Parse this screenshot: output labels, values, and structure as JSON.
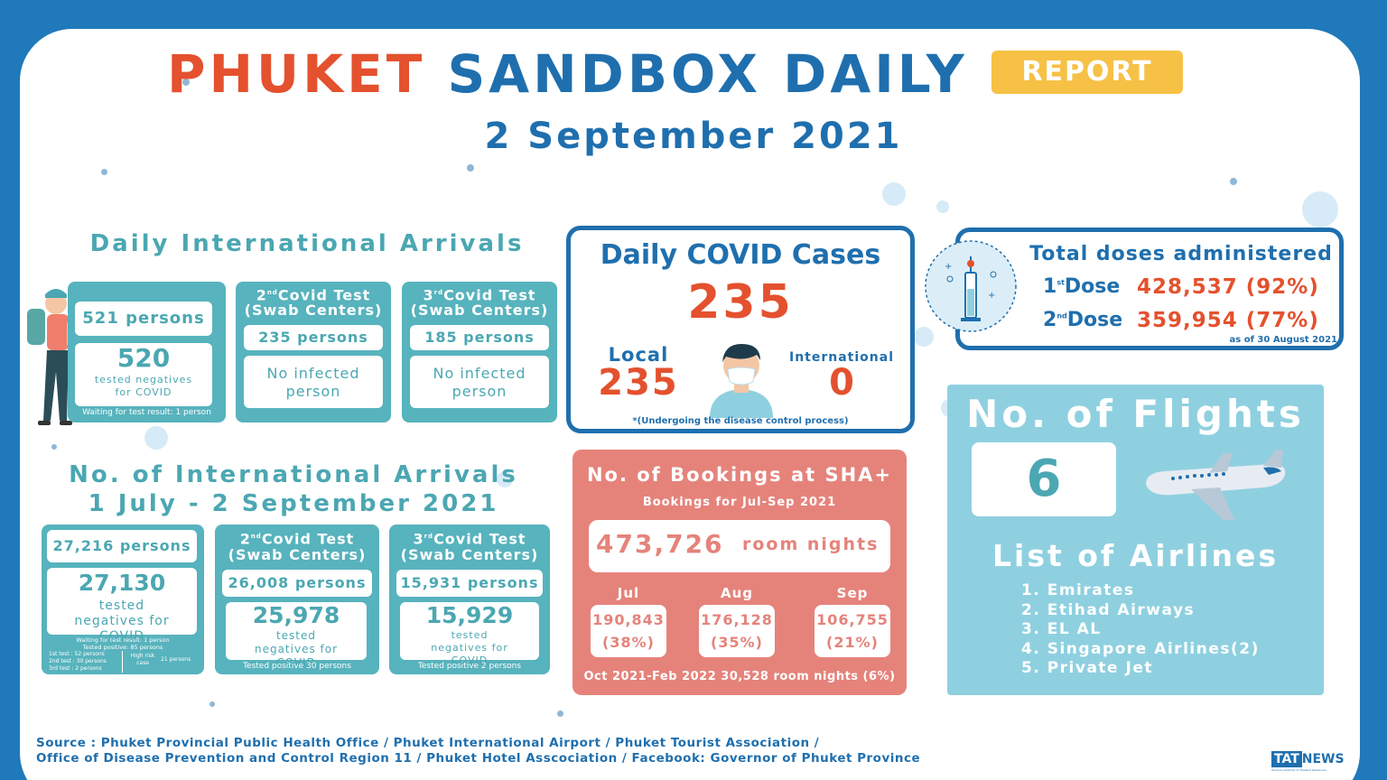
{
  "header": {
    "title_part1": "PHUKET",
    "title_part2": "SANDBOX DAILY",
    "badge": "REPORT",
    "date": "2 September 2021"
  },
  "daily_arrivals": {
    "heading": "Daily International Arrivals",
    "persons": "521 persons",
    "negatives_count": "520",
    "negatives_label": "tested negatives for COVID",
    "waiting": "Waiting for test result: 1 person",
    "test2_title_ord": "nd",
    "test2_title_num": "2",
    "test2_title": "Covid Test",
    "test2_sub": "(Swab Centers)",
    "test2_persons": "235 persons",
    "test2_result": "No infected person",
    "test3_title_ord": "rd",
    "test3_title_num": "3",
    "test3_title": "Covid Test",
    "test3_sub": "(Swab Centers)",
    "test3_persons": "185 persons",
    "test3_result": "No infected person"
  },
  "total_arrivals": {
    "heading_line1": "No. of International Arrivals",
    "heading_line2": "1 July - 2 September 2021",
    "persons": "27,216 persons",
    "negatives_count": "27,130",
    "negatives_label": "tested negatives for COVID",
    "note1": "Waiting for test result: 1 person",
    "note2": "Tested positive: 85 persons",
    "note3a": "1st test :  52 persons",
    "note3b": "2nd test :  30 persons",
    "note3c": "3rd test :  2 persons",
    "note_high_risk": "High risk case",
    "note_high_risk_val": "21 persons",
    "test2_num": "2",
    "test2_ord": "nd",
    "test2_title": "Covid Test",
    "test2_sub": "(Swab Centers)",
    "test2_persons": "26,008 persons",
    "test2_neg_count": "25,978",
    "test2_neg_label": "tested negatives for COVID",
    "test2_pos": "Tested positive 30 persons",
    "test3_num": "3",
    "test3_ord": "rd",
    "test3_title": "Covid Test",
    "test3_sub": "(Swab Centers)",
    "test3_persons": "15,931 persons",
    "test3_neg_count": "15,929",
    "test3_neg_label": "tested negatives for COVID",
    "test3_pos": "Tested positive 2 persons"
  },
  "covid_cases": {
    "heading": "Daily COVID Cases",
    "total": "235",
    "local_label": "Local",
    "local_value": "235",
    "intl_label": "International",
    "intl_value": "0",
    "note": "*(Undergoing the disease control process)"
  },
  "doses": {
    "heading": "Total doses administered",
    "dose1_num": "1",
    "dose1_ord": "st",
    "dose1_label": "Dose",
    "dose1_value": "428,537 (92%)",
    "dose2_num": "2",
    "dose2_ord": "nd",
    "dose2_label": "Dose",
    "dose2_value": "359,954 (77%)",
    "as_of": "as of 30 August 2021"
  },
  "bookings": {
    "heading": "No. of Bookings at SHA+",
    "sub": "Bookings for Jul-Sep 2021",
    "total": "473,726",
    "unit": "room nights",
    "months": [
      {
        "label": "Jul",
        "value": "190,843",
        "pct": "(38%)"
      },
      {
        "label": "Aug",
        "value": "176,128",
        "pct": "(35%)"
      },
      {
        "label": "Sep",
        "value": "106,755",
        "pct": "(21%)"
      }
    ],
    "footer": "Oct 2021-Feb 2022 30,528 room nights (6%)"
  },
  "flights": {
    "heading": "No. of Flights",
    "count": "6",
    "airlines_heading": "List of Airlines",
    "airlines": [
      "1. Emirates",
      "2. Etihad Airways",
      "3. EL AL",
      "4. Singapore Airlines(2)",
      "5. Private Jet"
    ]
  },
  "source": {
    "line1": "Source : Phuket Provincial Public Health Office / Phuket International Airport / Phuket Tourist Association /",
    "line2": "Office of Disease Prevention and Control Region 11 / Phuket Hotel Asscociation / Facebook: Governor of Phuket Province"
  },
  "logo": {
    "brand_a": "TAT",
    "brand_b": "NEWS",
    "tagline": "Tourism Authority of Thailand Newsroom"
  },
  "colors": {
    "background": "#1f79ba",
    "red": "#e4512e",
    "blue": "#1f6fae",
    "teal": "#57b3bd",
    "pink": "#e5837b",
    "yellow": "#f6c145",
    "light_blue": "#8fd0e0"
  }
}
